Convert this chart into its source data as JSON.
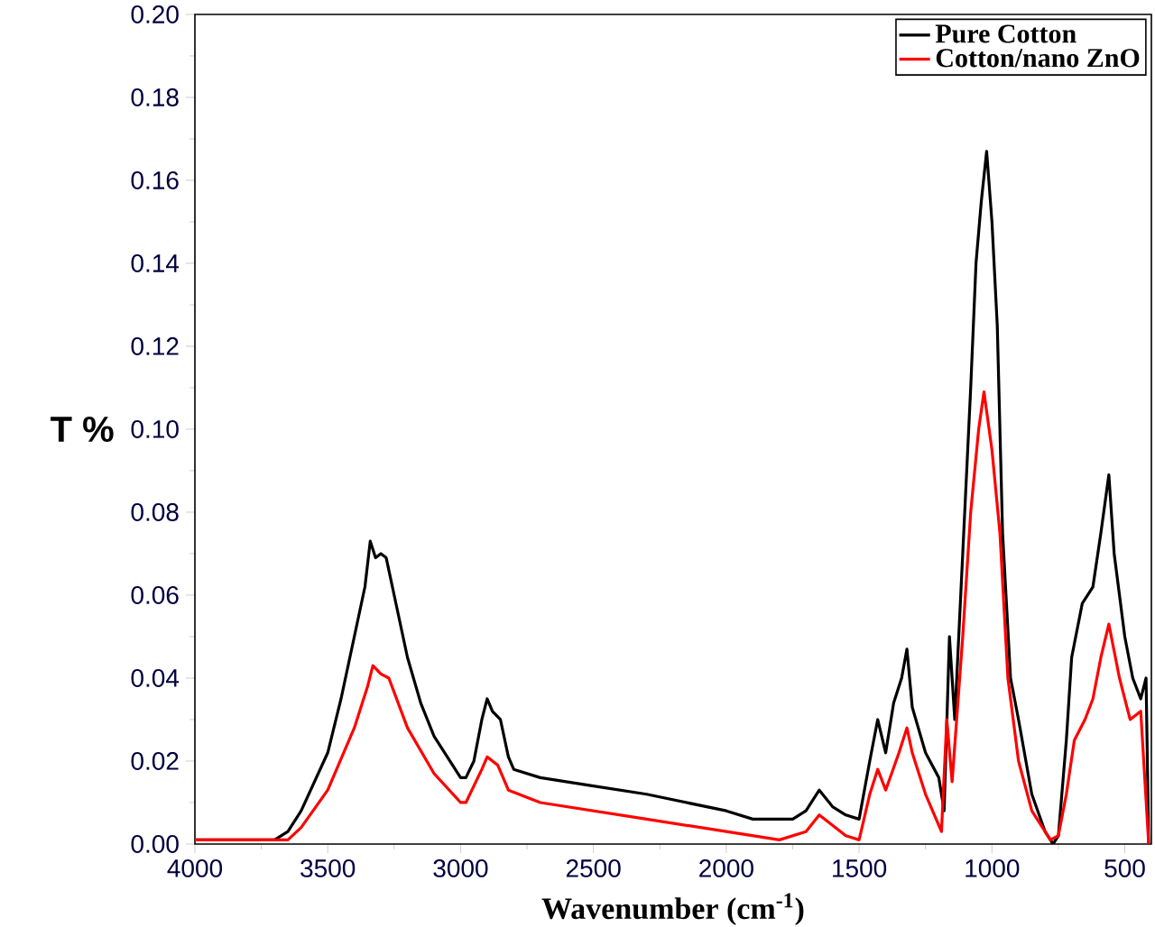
{
  "chart_data": {
    "type": "line",
    "xlabel": "Wavenumber (cm$^{-1}$)",
    "ylabel": "T %",
    "xlim": [
      4000,
      400
    ],
    "ylim": [
      0,
      0.2
    ],
    "xticks": [
      4000,
      3500,
      3000,
      2500,
      2000,
      1500,
      1000,
      500
    ],
    "yticks": [
      {
        "value": 0,
        "label": "0.00"
      },
      {
        "value": 0.02,
        "label": "0.02"
      },
      {
        "value": 0.04,
        "label": "0.04"
      },
      {
        "value": 0.06,
        "label": "0.06"
      },
      {
        "value": 0.08,
        "label": "0.08"
      },
      {
        "value": 0.1,
        "label": "0.10"
      },
      {
        "value": 0.12,
        "label": "0.12"
      },
      {
        "value": 0.14,
        "label": "0.14"
      },
      {
        "value": 0.16,
        "label": "0.16"
      },
      {
        "value": 0.18,
        "label": "0.18"
      },
      {
        "value": 0.2,
        "label": "0.20"
      }
    ],
    "legend": "top right",
    "grid": false,
    "marker": "none",
    "line_style": "solid",
    "series": [
      {
        "name": "Pure Cotton",
        "color": "#000000",
        "x": [
          4000,
          3700,
          3650,
          3600,
          3500,
          3450,
          3400,
          3360,
          3340,
          3320,
          3300,
          3280,
          3250,
          3200,
          3150,
          3100,
          3050,
          3000,
          2980,
          2950,
          2920,
          2900,
          2880,
          2850,
          2820,
          2800,
          2700,
          2500,
          2300,
          2000,
          1900,
          1750,
          1700,
          1650,
          1600,
          1550,
          1500,
          1460,
          1430,
          1400,
          1370,
          1340,
          1320,
          1300,
          1250,
          1200,
          1180,
          1160,
          1140,
          1110,
          1080,
          1060,
          1040,
          1020,
          1000,
          980,
          960,
          930,
          900,
          850,
          800,
          770,
          750,
          720,
          700,
          660,
          620,
          590,
          560,
          540,
          500,
          470,
          440,
          420,
          410
        ],
        "values": [
          0.001,
          0.001,
          0.003,
          0.008,
          0.022,
          0.035,
          0.05,
          0.062,
          0.073,
          0.069,
          0.07,
          0.069,
          0.06,
          0.045,
          0.034,
          0.026,
          0.021,
          0.016,
          0.016,
          0.02,
          0.03,
          0.035,
          0.032,
          0.03,
          0.021,
          0.018,
          0.016,
          0.014,
          0.012,
          0.008,
          0.006,
          0.006,
          0.008,
          0.013,
          0.009,
          0.007,
          0.006,
          0.02,
          0.03,
          0.022,
          0.034,
          0.04,
          0.047,
          0.033,
          0.022,
          0.016,
          0.008,
          0.05,
          0.03,
          0.07,
          0.11,
          0.14,
          0.155,
          0.167,
          0.15,
          0.125,
          0.075,
          0.04,
          0.03,
          0.012,
          0.003,
          0.0,
          0.002,
          0.025,
          0.045,
          0.058,
          0.062,
          0.075,
          0.089,
          0.07,
          0.05,
          0.04,
          0.035,
          0.04,
          0.0
        ]
      },
      {
        "name": "Cotton/nano ZnO",
        "color": "#ff0000",
        "x": [
          4000,
          3650,
          3600,
          3500,
          3400,
          3350,
          3330,
          3300,
          3270,
          3200,
          3100,
          3000,
          2980,
          2920,
          2900,
          2860,
          2820,
          2700,
          2300,
          2000,
          1800,
          1700,
          1650,
          1550,
          1500,
          1460,
          1430,
          1400,
          1350,
          1320,
          1300,
          1250,
          1190,
          1170,
          1150,
          1110,
          1080,
          1050,
          1030,
          1000,
          970,
          940,
          900,
          850,
          780,
          750,
          720,
          690,
          650,
          620,
          590,
          560,
          520,
          480,
          440,
          410
        ],
        "values": [
          0.001,
          0.001,
          0.004,
          0.013,
          0.028,
          0.038,
          0.043,
          0.041,
          0.04,
          0.028,
          0.017,
          0.01,
          0.01,
          0.018,
          0.021,
          0.019,
          0.013,
          0.01,
          0.006,
          0.003,
          0.001,
          0.003,
          0.007,
          0.002,
          0.001,
          0.012,
          0.018,
          0.013,
          0.022,
          0.028,
          0.022,
          0.012,
          0.003,
          0.03,
          0.015,
          0.05,
          0.08,
          0.1,
          0.109,
          0.095,
          0.075,
          0.04,
          0.02,
          0.008,
          0.001,
          0.002,
          0.012,
          0.025,
          0.03,
          0.035,
          0.045,
          0.053,
          0.04,
          0.03,
          0.032,
          0.0
        ]
      }
    ]
  }
}
